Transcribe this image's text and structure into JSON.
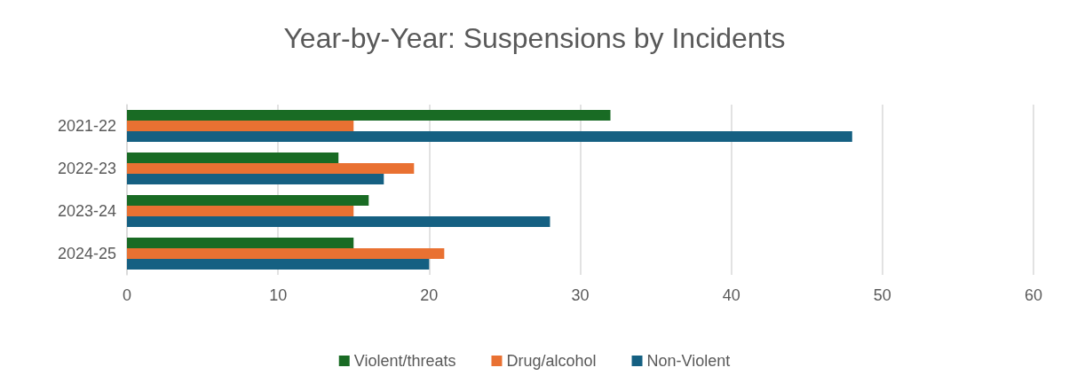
{
  "chart_data": {
    "type": "bar",
    "orientation": "horizontal",
    "title": "Year-by-Year: Suspensions by Incidents",
    "categories": [
      "2021-22",
      "2022-23",
      "2023-24",
      "2024-25"
    ],
    "series": [
      {
        "name": "Violent/threats",
        "color": "#196b24",
        "values": [
          32,
          14,
          16,
          15
        ]
      },
      {
        "name": "Drug/alcohol",
        "color": "#e97132",
        "values": [
          15,
          19,
          15,
          21
        ]
      },
      {
        "name": "Non-Violent",
        "color": "#156082",
        "values": [
          48,
          17,
          28,
          20
        ]
      }
    ],
    "xlim": [
      0,
      60
    ],
    "xticks": [
      0,
      10,
      20,
      30,
      40,
      50,
      60
    ],
    "grid": "x",
    "legend": "bottom"
  }
}
